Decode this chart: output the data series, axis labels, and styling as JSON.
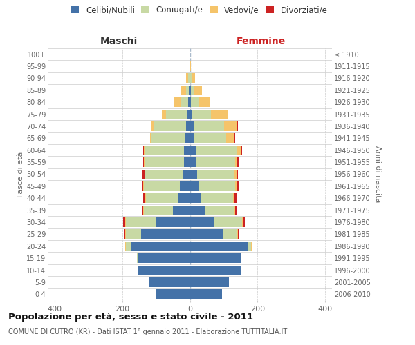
{
  "age_groups": [
    "0-4",
    "5-9",
    "10-14",
    "15-19",
    "20-24",
    "25-29",
    "30-34",
    "35-39",
    "40-44",
    "45-49",
    "50-54",
    "55-59",
    "60-64",
    "65-69",
    "70-74",
    "75-79",
    "80-84",
    "85-89",
    "90-94",
    "95-99",
    "100+"
  ],
  "birth_years": [
    "2006-2010",
    "2001-2005",
    "1996-2000",
    "1991-1995",
    "1986-1990",
    "1981-1985",
    "1976-1980",
    "1971-1975",
    "1966-1970",
    "1961-1965",
    "1956-1960",
    "1951-1955",
    "1946-1950",
    "1941-1945",
    "1936-1940",
    "1931-1935",
    "1926-1930",
    "1921-1925",
    "1916-1920",
    "1911-1915",
    "≤ 1910"
  ],
  "maschi": {
    "celibi": [
      100,
      120,
      155,
      155,
      175,
      145,
      100,
      50,
      35,
      30,
      22,
      18,
      17,
      14,
      12,
      10,
      5,
      3,
      2,
      1,
      0
    ],
    "coniugati": [
      0,
      0,
      0,
      2,
      15,
      45,
      90,
      85,
      95,
      105,
      110,
      115,
      115,
      100,
      95,
      60,
      20,
      8,
      4,
      1,
      0
    ],
    "vedovi": [
      0,
      0,
      0,
      0,
      2,
      2,
      2,
      2,
      2,
      2,
      2,
      2,
      4,
      4,
      8,
      12,
      20,
      15,
      5,
      0,
      0
    ],
    "divorziati": [
      0,
      0,
      0,
      0,
      0,
      2,
      5,
      5,
      5,
      5,
      5,
      2,
      2,
      0,
      0,
      0,
      0,
      0,
      0,
      0,
      0
    ]
  },
  "femmine": {
    "nubili": [
      95,
      115,
      150,
      150,
      170,
      100,
      70,
      45,
      32,
      28,
      22,
      18,
      18,
      12,
      12,
      8,
      4,
      3,
      2,
      1,
      0
    ],
    "coniugate": [
      0,
      0,
      0,
      2,
      10,
      40,
      85,
      85,
      95,
      105,
      110,
      115,
      120,
      95,
      90,
      55,
      22,
      8,
      4,
      0,
      0
    ],
    "vedove": [
      0,
      0,
      0,
      0,
      2,
      2,
      3,
      3,
      4,
      4,
      5,
      8,
      12,
      25,
      35,
      50,
      35,
      25,
      10,
      2,
      0
    ],
    "divorziate": [
      0,
      0,
      0,
      0,
      0,
      2,
      5,
      5,
      10,
      8,
      5,
      5,
      5,
      2,
      5,
      0,
      0,
      0,
      0,
      0,
      0
    ]
  },
  "colors": {
    "celibi_nubili": "#4472a8",
    "coniugati": "#c8d9a4",
    "vedovi": "#f5c46a",
    "divorziati": "#cc2222"
  },
  "xlim": 420,
  "title": "Popolazione per età, sesso e stato civile - 2011",
  "subtitle": "COMUNE DI CUTRO (KR) - Dati ISTAT 1° gennaio 2011 - Elaborazione TUTTITALIA.IT",
  "ylabel_left": "Fasce di età",
  "ylabel_right": "Anni di nascita",
  "xlabel_left": "Maschi",
  "xlabel_right": "Femmine",
  "background_color": "#ffffff",
  "grid_color": "#cccccc"
}
